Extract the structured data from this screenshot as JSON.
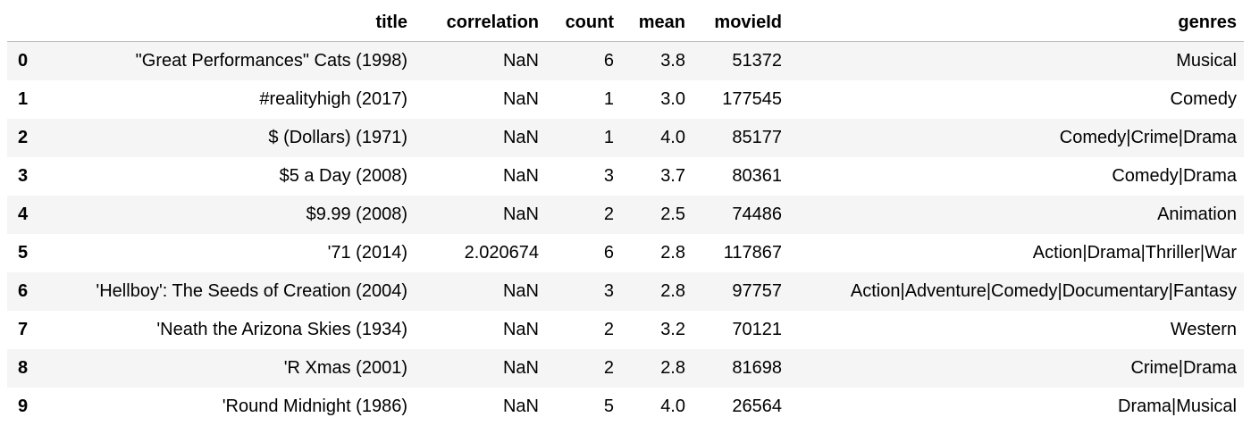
{
  "table": {
    "columns": [
      "",
      "title",
      "correlation",
      "count",
      "mean",
      "movieId",
      "genres"
    ],
    "rows": [
      {
        "index": "0",
        "title": "\"Great Performances\" Cats (1998)",
        "correlation": "NaN",
        "count": "6",
        "mean": "3.8",
        "movieId": "51372",
        "genres": "Musical"
      },
      {
        "index": "1",
        "title": "#realityhigh (2017)",
        "correlation": "NaN",
        "count": "1",
        "mean": "3.0",
        "movieId": "177545",
        "genres": "Comedy"
      },
      {
        "index": "2",
        "title": "$ (Dollars) (1971)",
        "correlation": "NaN",
        "count": "1",
        "mean": "4.0",
        "movieId": "85177",
        "genres": "Comedy|Crime|Drama"
      },
      {
        "index": "3",
        "title": "$5 a Day (2008)",
        "correlation": "NaN",
        "count": "3",
        "mean": "3.7",
        "movieId": "80361",
        "genres": "Comedy|Drama"
      },
      {
        "index": "4",
        "title": "$9.99 (2008)",
        "correlation": "NaN",
        "count": "2",
        "mean": "2.5",
        "movieId": "74486",
        "genres": "Animation"
      },
      {
        "index": "5",
        "title": "'71 (2014)",
        "correlation": "2.020674",
        "count": "6",
        "mean": "2.8",
        "movieId": "117867",
        "genres": "Action|Drama|Thriller|War"
      },
      {
        "index": "6",
        "title": "'Hellboy': The Seeds of Creation (2004)",
        "correlation": "NaN",
        "count": "3",
        "mean": "2.8",
        "movieId": "97757",
        "genres": "Action|Adventure|Comedy|Documentary|Fantasy"
      },
      {
        "index": "7",
        "title": "'Neath the Arizona Skies (1934)",
        "correlation": "NaN",
        "count": "2",
        "mean": "3.2",
        "movieId": "70121",
        "genres": "Western"
      },
      {
        "index": "8",
        "title": "'R Xmas (2001)",
        "correlation": "NaN",
        "count": "2",
        "mean": "2.8",
        "movieId": "81698",
        "genres": "Crime|Drama"
      },
      {
        "index": "9",
        "title": "'Round Midnight (1986)",
        "correlation": "NaN",
        "count": "5",
        "mean": "4.0",
        "movieId": "26564",
        "genres": "Drama|Musical"
      }
    ]
  }
}
